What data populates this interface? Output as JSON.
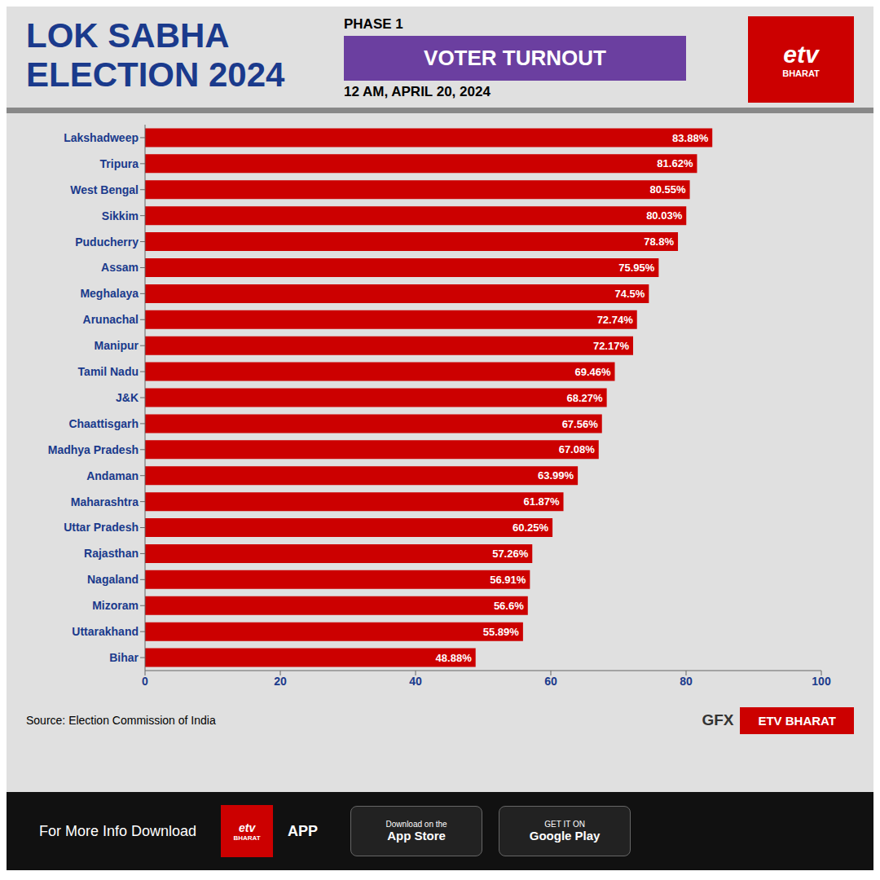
{
  "chart_data": {
    "type": "bar",
    "orientation": "horizontal",
    "title": "LOK SABHA ELECTION 2024",
    "subtitle": "VOTER TURNOUT",
    "annotations": [
      "PHASE 1",
      "12 AM, APRIL 20, 2024",
      "etv",
      "BHARAT",
      "Source: Election Commission of India",
      "GFX",
      "ETV BHARAT",
      "For More Info Download",
      "etv",
      "BHARAT",
      "APP",
      "Download on the",
      "App Store",
      "GET IT ON",
      "Google Play"
    ],
    "categories": [
      "Lakshadweep",
      "Tripura",
      "West Bengal",
      "Sikkim",
      "Puducherry",
      "Assam",
      "Meghalaya",
      "Arunachal",
      "Manipur",
      "Tamil Nadu",
      "J&K",
      "Chaattisgarh",
      "Madhya Pradesh",
      "Andaman",
      "Maharashtra",
      "Uttar Pradesh",
      "Rajasthan",
      "Nagaland",
      "Mizoram",
      "Uttarakhand",
      "Bihar"
    ],
    "values": [
      83.88,
      81.62,
      80.55,
      80.03,
      78.8,
      75.95,
      74.5,
      72.74,
      72.17,
      69.46,
      68.27,
      67.56,
      67.08,
      63.99,
      61.87,
      60.25,
      57.26,
      56.91,
      56.6,
      55.89,
      48.88
    ],
    "value_labels": [
      "83.88%",
      "81.62%",
      "80.55%",
      "80.03%",
      "78.8%",
      "75.95%",
      "74.5%",
      "72.74%",
      "72.17%",
      "69.46%",
      "68.27%",
      "67.56%",
      "67.08%",
      "63.99%",
      "61.87%",
      "60.25%",
      "57.26%",
      "56.91%",
      "56.6%",
      "55.89%",
      "48.88%"
    ],
    "color": "#CC0000",
    "xlim": [
      0,
      100
    ],
    "xticks": [
      0,
      20,
      40,
      60,
      80,
      100
    ],
    "data_labels": true,
    "grid": false
  }
}
